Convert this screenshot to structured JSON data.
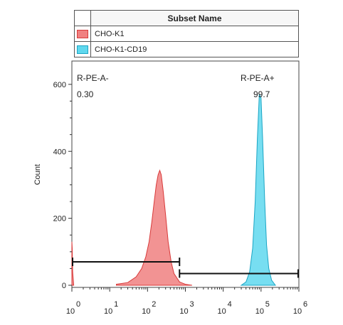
{
  "legend": {
    "header": "Subset Name",
    "items": [
      {
        "label": "CHO-K1",
        "fill": "#f08080",
        "stroke": "#d83a3a"
      },
      {
        "label": "CHO-K1-CD19",
        "fill": "#5fd8ee",
        "stroke": "#1aa5c4"
      }
    ]
  },
  "chart_data": {
    "type": "area",
    "title": "",
    "xlabel": "",
    "ylabel": "Count",
    "xscale": "log",
    "xlim": [
      1,
      1000000
    ],
    "ylim": [
      0,
      640
    ],
    "x_ticks": [
      {
        "value": 1,
        "base": "10",
        "exp": "0"
      },
      {
        "value": 10,
        "base": "10",
        "exp": "1"
      },
      {
        "value": 100,
        "base": "10",
        "exp": "2"
      },
      {
        "value": 1000,
        "base": "10",
        "exp": "3"
      },
      {
        "value": 10000,
        "base": "10",
        "exp": "4"
      },
      {
        "value": 100000,
        "base": "10",
        "exp": "5"
      },
      {
        "value": 1000000,
        "base": "10",
        "exp": "6"
      }
    ],
    "y_ticks": [
      0,
      200,
      400,
      600
    ],
    "series": [
      {
        "name": "CHO-K1",
        "color": "#f08080",
        "stroke": "#d83a3a",
        "x": [
          15,
          30,
          50,
          70,
          90,
          110,
          130,
          150,
          170,
          190,
          210,
          230,
          260,
          300,
          350,
          420,
          500,
          700,
          1000,
          1500
        ],
        "y": [
          3,
          8,
          25,
          50,
          85,
          130,
          190,
          250,
          300,
          330,
          343,
          330,
          280,
          210,
          130,
          70,
          35,
          10,
          3,
          0
        ]
      },
      {
        "name": "CHO-K1-CD19",
        "color": "#5fd8ee",
        "stroke": "#1aa5c4",
        "x": [
          30000,
          40000,
          50000,
          60000,
          70000,
          80000,
          90000,
          100000,
          110000,
          125000,
          140000,
          160000,
          190000,
          240000
        ],
        "y": [
          0,
          10,
          40,
          110,
          250,
          440,
          570,
          560,
          440,
          250,
          120,
          50,
          15,
          0
        ]
      },
      {
        "name": "CHO-K1 low edge",
        "color": "#f08080",
        "stroke": "#d83a3a",
        "x": [
          1,
          1.02,
          1.05,
          1.12
        ],
        "y": [
          130,
          110,
          40,
          0
        ]
      }
    ],
    "gates": [
      {
        "label": "R-PE-A-",
        "value": "0.30",
        "x_range": [
          1,
          700
        ],
        "y": 70
      },
      {
        "label": "R-PE-A+",
        "value": "99.7",
        "x_range": [
          700,
          1000000
        ],
        "y": 35
      }
    ]
  }
}
